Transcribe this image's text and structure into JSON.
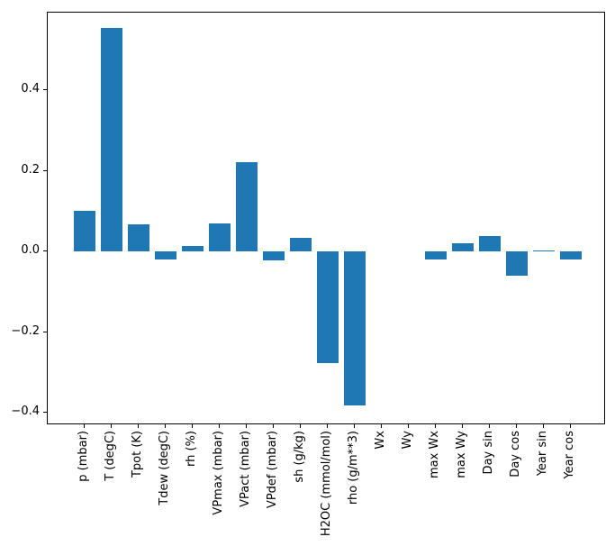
{
  "chart_data": {
    "type": "bar",
    "title": "",
    "xlabel": "",
    "ylabel": "",
    "categories": [
      "p (mbar)",
      "T (degC)",
      "Tpot (K)",
      "Tdew (degC)",
      "rh (%)",
      "VPmax (mbar)",
      "VPact (mbar)",
      "VPdef (mbar)",
      "sh (g/kg)",
      "H2OC (mmol/mol)",
      "rho (g/m**3)",
      "Wx",
      "Wy",
      "max Wx",
      "max Wy",
      "Day sin",
      "Day cos",
      "Year sin",
      "Year cos"
    ],
    "values": [
      0.1,
      0.554,
      0.066,
      -0.019,
      0.014,
      0.07,
      0.222,
      -0.023,
      0.034,
      -0.276,
      -0.383,
      0.0,
      0.0,
      -0.02,
      0.02,
      0.037,
      -0.06,
      0.002,
      -0.019
    ],
    "bar_color": "#1f77b4",
    "axis_color": "#000000",
    "background_color": "#ffffff",
    "ylim": [
      -0.431,
      0.593
    ],
    "y_ticks": [
      {
        "value": 0.4,
        "label": "0.4"
      },
      {
        "value": 0.2,
        "label": "0.2"
      },
      {
        "value": 0.0,
        "label": "0.0"
      },
      {
        "value": -0.2,
        "label": "−0.2"
      },
      {
        "value": -0.4,
        "label": "−0.4"
      }
    ],
    "grid": false,
    "legend": "none",
    "x_tick_rotation_deg": 90
  }
}
